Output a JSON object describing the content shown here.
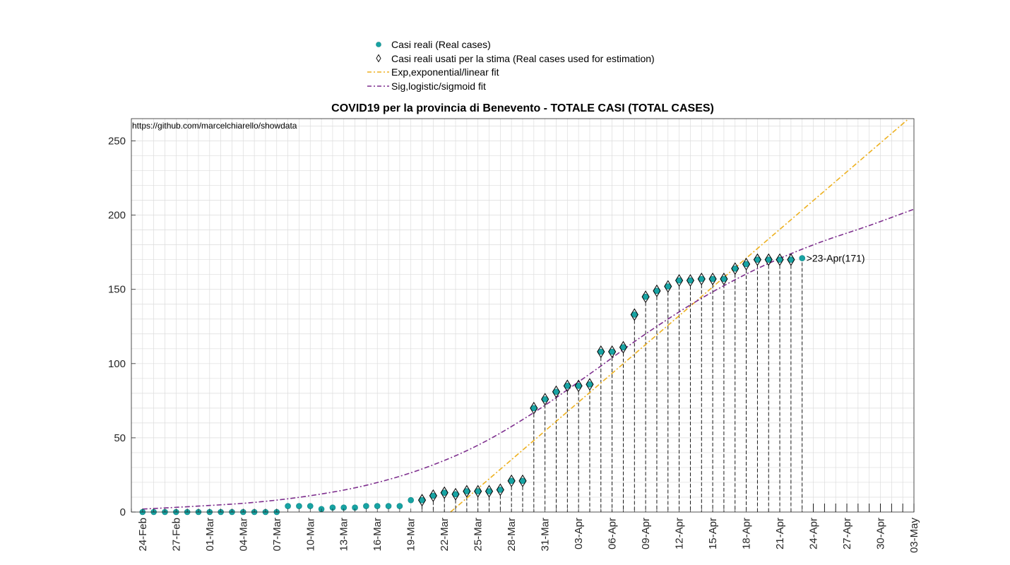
{
  "chart_data": {
    "type": "scatter",
    "title": "COVID19 per la provincia di Benevento - TOTALE CASI (TOTAL CASES)",
    "source_note": "https://github.com/marcelchiarello/showdata",
    "xlabel": "",
    "ylabel": "",
    "xlim": [
      "2020-02-23",
      "2020-05-03"
    ],
    "ylim": [
      0,
      265
    ],
    "yticks": [
      0,
      50,
      100,
      150,
      200,
      250
    ],
    "xticks": [
      "24-Feb",
      "27-Feb",
      "01-Mar",
      "04-Mar",
      "07-Mar",
      "10-Mar",
      "13-Mar",
      "16-Mar",
      "19-Mar",
      "22-Mar",
      "25-Mar",
      "28-Mar",
      "31-Mar",
      "03-Apr",
      "06-Apr",
      "09-Apr",
      "12-Apr",
      "15-Apr",
      "18-Apr",
      "21-Apr",
      "24-Apr",
      "27-Apr",
      "30-Apr",
      "03-May"
    ],
    "grid": true,
    "legend_position": "top",
    "legend": [
      {
        "label": "Casi reali (Real cases)",
        "marker": "dot"
      },
      {
        "label": "Casi reali usati per la stima (Real cases used for estimation)",
        "marker": "diamond"
      },
      {
        "label": "Exp,exponential/linear fit",
        "marker": "dashdot-orange"
      },
      {
        "label": "Sig,logistic/sigmoid fit",
        "marker": "dashdot-purple"
      }
    ],
    "colors": {
      "real_cases": "#17a3a3",
      "exp_fit": "#edb120",
      "sig_fit": "#7e2f8e",
      "grid": "#dcdcdc"
    },
    "real_cases": {
      "dates": [
        "2020-02-24",
        "2020-02-25",
        "2020-02-26",
        "2020-02-27",
        "2020-02-28",
        "2020-02-29",
        "2020-03-01",
        "2020-03-02",
        "2020-03-03",
        "2020-03-04",
        "2020-03-05",
        "2020-03-06",
        "2020-03-07",
        "2020-03-08",
        "2020-03-09",
        "2020-03-10",
        "2020-03-11",
        "2020-03-12",
        "2020-03-13",
        "2020-03-14",
        "2020-03-15",
        "2020-03-16",
        "2020-03-17",
        "2020-03-18",
        "2020-03-19",
        "2020-03-20",
        "2020-03-21",
        "2020-03-22",
        "2020-03-23",
        "2020-03-24",
        "2020-03-25",
        "2020-03-26",
        "2020-03-27",
        "2020-03-28",
        "2020-03-29",
        "2020-03-30",
        "2020-03-31",
        "2020-04-01",
        "2020-04-02",
        "2020-04-03",
        "2020-04-04",
        "2020-04-05",
        "2020-04-06",
        "2020-04-07",
        "2020-04-08",
        "2020-04-09",
        "2020-04-10",
        "2020-04-11",
        "2020-04-12",
        "2020-04-13",
        "2020-04-14",
        "2020-04-15",
        "2020-04-16",
        "2020-04-17",
        "2020-04-18",
        "2020-04-19",
        "2020-04-20",
        "2020-04-21",
        "2020-04-22",
        "2020-04-23"
      ],
      "values": [
        0,
        0,
        0,
        0,
        0,
        0,
        0,
        0,
        0,
        0,
        0,
        0,
        0,
        4,
        4,
        4,
        2,
        3,
        3,
        3,
        4,
        4,
        4,
        4,
        8,
        8,
        11,
        13,
        12,
        14,
        14,
        14,
        15,
        21,
        21,
        70,
        76,
        81,
        85,
        85,
        86,
        108,
        108,
        111,
        133,
        145,
        149,
        152,
        156,
        156,
        157,
        157,
        157,
        164,
        167,
        170,
        170,
        170,
        170,
        171
      ]
    },
    "estimation_points": {
      "dates": [
        "2020-03-20",
        "2020-03-21",
        "2020-03-22",
        "2020-03-23",
        "2020-03-24",
        "2020-03-25",
        "2020-03-26",
        "2020-03-27",
        "2020-03-28",
        "2020-03-29",
        "2020-03-30",
        "2020-03-31",
        "2020-04-01",
        "2020-04-02",
        "2020-04-03",
        "2020-04-04",
        "2020-04-05",
        "2020-04-06",
        "2020-04-07",
        "2020-04-08",
        "2020-04-09",
        "2020-04-10",
        "2020-04-11",
        "2020-04-12",
        "2020-04-13",
        "2020-04-14",
        "2020-04-15",
        "2020-04-16",
        "2020-04-17",
        "2020-04-18",
        "2020-04-19",
        "2020-04-20",
        "2020-04-21",
        "2020-04-22"
      ],
      "values": [
        8,
        11,
        13,
        12,
        14,
        14,
        14,
        15,
        21,
        21,
        70,
        76,
        81,
        85,
        85,
        86,
        108,
        108,
        111,
        133,
        145,
        149,
        152,
        156,
        156,
        157,
        157,
        157,
        164,
        167,
        170,
        170,
        170,
        170
      ]
    },
    "projection_markers": {
      "dates": [
        "2020-04-24",
        "2020-04-25",
        "2020-04-26",
        "2020-04-27",
        "2020-04-28",
        "2020-04-29",
        "2020-04-30",
        "2020-05-01",
        "2020-05-02",
        "2020-05-03"
      ]
    },
    "exp_fit": {
      "x": [
        "2020-03-21",
        "2020-05-03"
      ],
      "y": [
        -10,
        268
      ]
    },
    "sig_fit": {
      "x": [
        "2020-02-24",
        "2020-02-29",
        "2020-03-05",
        "2020-03-10",
        "2020-03-15",
        "2020-03-20",
        "2020-03-25",
        "2020-03-30",
        "2020-04-04",
        "2020-04-09",
        "2020-04-14",
        "2020-04-19",
        "2020-04-24",
        "2020-04-29",
        "2020-05-03"
      ],
      "y": [
        2,
        4,
        6.5,
        11,
        18,
        29,
        45,
        67,
        93,
        120,
        144,
        164,
        180,
        193,
        204
      ]
    },
    "annotation": {
      "date": "2020-04-23",
      "value": 171,
      "text": ">23-Apr(171)"
    }
  }
}
